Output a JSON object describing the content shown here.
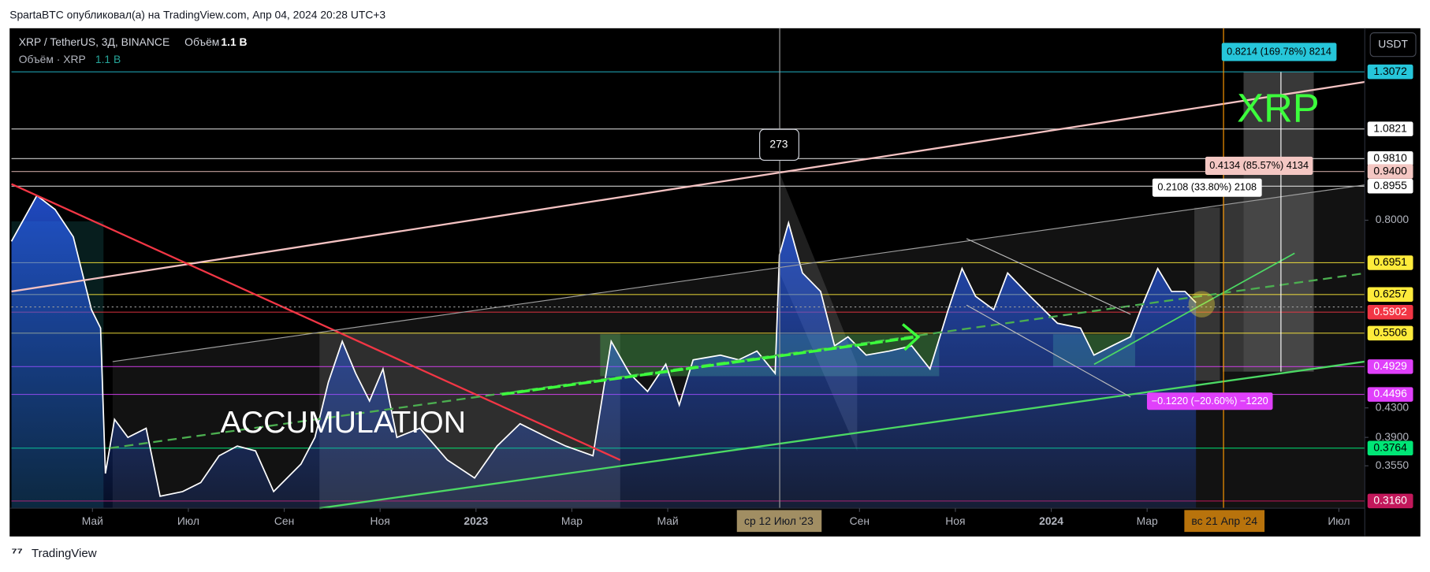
{
  "header": {
    "author_line": "SpartaBTC опубликовал(а) на TradingView.com, Апр 04, 2024 20:28 UTC+3"
  },
  "legend": {
    "symbol": "XRP / TetherUS, 3Д, BINANCE",
    "volume_label": "Объём",
    "volume_value": "1.1 B",
    "indicator": "Объём · XRP",
    "indicator_value": "1.1 B"
  },
  "currency_button": "USDT",
  "crosshair": {
    "date_1": "ср 12 Июл '23",
    "date_2": "вс 21 Апр '24"
  },
  "annotations": {
    "accumulation": "ACCUMULATION",
    "ticker": "XRP",
    "bars_count": "273",
    "measure_1": "0.8214 (169.78%) 8214",
    "measure_2": "0.4134 (85.57%) 4134",
    "measure_3": "0.2108 (33.80%) 2108",
    "measure_4": "−0.1220 (−20.60%) −1220"
  },
  "footer": {
    "brand": "TradingView"
  },
  "chart_data": {
    "type": "line",
    "log_scale": true,
    "color": "#ffffff",
    "fill_color": "#2962ff",
    "x": [
      -1.69,
      -1.16,
      -0.78,
      -0.4,
      -0.02,
      0.17,
      0.27,
      0.46,
      0.74,
      1.12,
      1.41,
      1.88,
      2.26,
      2.64,
      3.02,
      3.4,
      3.78,
      4.35,
      4.64,
      4.92,
      5.21,
      5.49,
      5.78,
      6.06,
      6.35,
      6.83,
      7.4,
      7.97,
      8.44,
      8.92,
      9.49,
      9.87,
      10.44,
      10.82,
      11.2,
      11.58,
      11.96,
      12.24,
      12.53,
      13.1,
      13.48,
      13.86,
      14.24,
      14.33,
      14.52,
      14.81,
      15.19,
      15.48,
      15.76,
      16.14,
      16.62,
      17.09,
      17.47,
      17.85,
      18.14,
      18.42,
      18.8,
      19.09,
      19.56,
      20.13,
      20.61,
      20.89,
      21.27,
      21.65,
      21.94,
      22.22,
      22.51,
      22.79,
      23.02
    ],
    "values": [
      0.746,
      0.868,
      0.829,
      0.757,
      0.595,
      0.56,
      0.346,
      0.414,
      0.39,
      0.402,
      0.321,
      0.326,
      0.336,
      0.367,
      0.379,
      0.373,
      0.326,
      0.357,
      0.39,
      0.468,
      0.536,
      0.482,
      0.44,
      0.489,
      0.39,
      0.402,
      0.362,
      0.341,
      0.379,
      0.408,
      0.39,
      0.379,
      0.367,
      0.536,
      0.482,
      0.454,
      0.497,
      0.434,
      0.504,
      0.512,
      0.504,
      0.519,
      0.482,
      0.713,
      0.793,
      0.672,
      0.632,
      0.528,
      0.544,
      0.512,
      0.519,
      0.528,
      0.489,
      0.595,
      0.682,
      0.622,
      0.595,
      0.672,
      0.622,
      0.569,
      0.56,
      0.512,
      0.528,
      0.544,
      0.613,
      0.682,
      0.632,
      0.632,
      0.609
    ],
    "xlim": [
      -1.69,
      26.54
    ],
    "xticks": [
      {
        "value": 0,
        "label": "Май"
      },
      {
        "value": 2,
        "label": "Июл"
      },
      {
        "value": 4,
        "label": "Сен"
      },
      {
        "value": 6,
        "label": "Ноя"
      },
      {
        "value": 8,
        "label": "2023"
      },
      {
        "value": 10,
        "label": "Мар"
      },
      {
        "value": 12,
        "label": "Май"
      },
      {
        "value": 16,
        "label": "Сен"
      },
      {
        "value": 18,
        "label": "Ноя"
      },
      {
        "value": 20,
        "label": "2024"
      },
      {
        "value": 22,
        "label": "Мар"
      },
      {
        "value": 26,
        "label": "Июл"
      }
    ],
    "ylim": [
      0.3085,
      1.51
    ],
    "yticks": [
      {
        "value": 0.8,
        "label": "0.8000"
      },
      {
        "value": 0.43,
        "label": "0.4300"
      },
      {
        "value": 0.39,
        "label": "0.3900"
      },
      {
        "value": 0.355,
        "label": "0.3550"
      }
    ],
    "levels": [
      {
        "value": 1.3072,
        "label": "1.3072",
        "color": "#26c6da",
        "text_color": "#000000"
      },
      {
        "value": 1.0821,
        "label": "1.0821",
        "color": "#ffffff",
        "text_color": "#000000"
      },
      {
        "value": 0.981,
        "label": "0.9810",
        "color": "#ffffff",
        "text_color": "#000000"
      },
      {
        "value": 0.94,
        "label": "0.9400",
        "color": "#f4c7c3",
        "text_color": "#000000"
      },
      {
        "value": 0.8955,
        "label": "0.8955",
        "color": "#ffffff",
        "text_color": "#000000"
      },
      {
        "value": 0.6951,
        "label": "0.6951",
        "color": "#ffeb3b",
        "text_color": "#000000"
      },
      {
        "value": 0.6257,
        "label": "0.6257",
        "color": "#ffeb3b",
        "text_color": "#000000"
      },
      {
        "value": 0.5902,
        "label": "0.5902",
        "color": "#f23645",
        "text_color": "#ffffff"
      },
      {
        "value": 0.5506,
        "label": "0.5506",
        "color": "#ffeb3b",
        "text_color": "#000000"
      },
      {
        "value": 0.4929,
        "label": "0.4929",
        "color": "#e040fb",
        "text_color": "#ffffff"
      },
      {
        "value": 0.4496,
        "label": "0.4496",
        "color": "#e040fb",
        "text_color": "#ffffff"
      },
      {
        "value": 0.3764,
        "label": "0.3764",
        "color": "#00e676",
        "text_color": "#000000"
      },
      {
        "value": 0.316,
        "label": "0.3160",
        "color": "#c2185b",
        "text_color": "#ffffff"
      }
    ]
  }
}
